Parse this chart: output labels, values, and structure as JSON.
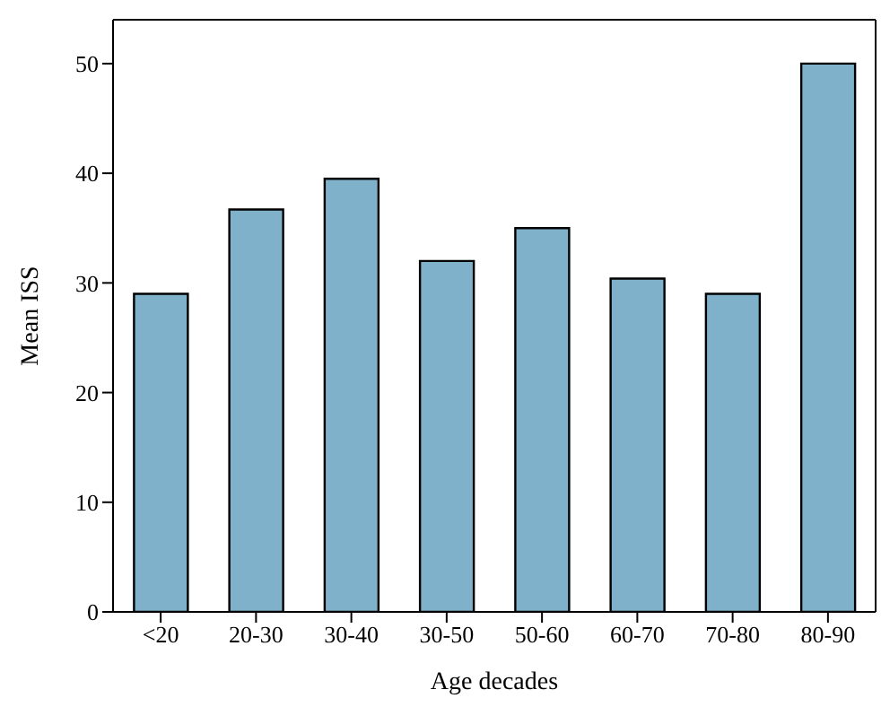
{
  "chart_data": {
    "type": "bar",
    "xlabel": "Age decades",
    "ylabel": "Mean ISS",
    "categories": [
      "<20",
      "20-30",
      "30-40",
      "30-50",
      "50-60",
      "60-70",
      "70-80",
      "80-90"
    ],
    "values": [
      29,
      36.7,
      39.5,
      32,
      35,
      30.4,
      29,
      50
    ],
    "color": "#7fb1cb",
    "ylim": [
      0,
      54
    ],
    "yticks": [
      0,
      10,
      20,
      30,
      40,
      50
    ]
  }
}
